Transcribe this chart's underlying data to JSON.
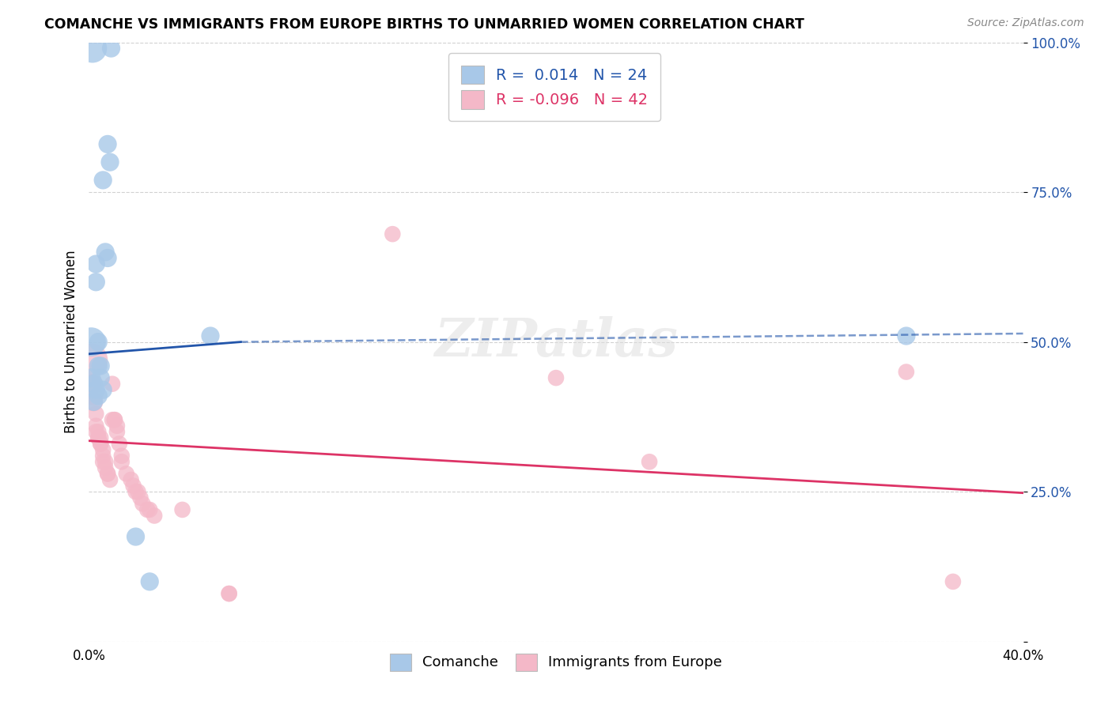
{
  "title": "COMANCHE VS IMMIGRANTS FROM EUROPE BIRTHS TO UNMARRIED WOMEN CORRELATION CHART",
  "source": "Source: ZipAtlas.com",
  "ylabel": "Births to Unmarried Women",
  "xlim": [
    0.0,
    0.4
  ],
  "ylim": [
    0.0,
    1.0
  ],
  "xticks": [
    0.0,
    0.4
  ],
  "xticklabels": [
    "0.0%",
    "40.0%"
  ],
  "yticks": [
    0.0,
    0.25,
    0.5,
    0.75,
    1.0
  ],
  "yticklabels": [
    "",
    "25.0%",
    "50.0%",
    "75.0%",
    "100.0%"
  ],
  "blue_color": "#a8c8e8",
  "pink_color": "#f4b8c8",
  "blue_line_color": "#2255aa",
  "pink_line_color": "#dd3366",
  "legend_label_blue": "Comanche",
  "legend_label_pink": "Immigrants from Europe",
  "R_blue": 0.014,
  "N_blue": 24,
  "R_pink": -0.096,
  "N_pink": 42,
  "blue_line_solid": [
    [
      0.0,
      0.48
    ],
    [
      0.065,
      0.5
    ]
  ],
  "blue_line_dashed": [
    [
      0.065,
      0.5
    ],
    [
      0.4,
      0.514
    ]
  ],
  "pink_line": [
    [
      0.0,
      0.335
    ],
    [
      0.4,
      0.248
    ]
  ],
  "blue_points": [
    [
      0.0015,
      0.99
    ],
    [
      0.0095,
      0.99
    ],
    [
      0.008,
      0.83
    ],
    [
      0.009,
      0.8
    ],
    [
      0.006,
      0.77
    ],
    [
      0.007,
      0.65
    ],
    [
      0.008,
      0.64
    ],
    [
      0.003,
      0.63
    ],
    [
      0.003,
      0.6
    ],
    [
      0.001,
      0.5
    ],
    [
      0.004,
      0.5
    ],
    [
      0.052,
      0.51
    ],
    [
      0.004,
      0.46
    ],
    [
      0.005,
      0.46
    ],
    [
      0.001,
      0.44
    ],
    [
      0.005,
      0.44
    ],
    [
      0.002,
      0.43
    ],
    [
      0.003,
      0.42
    ],
    [
      0.006,
      0.42
    ],
    [
      0.004,
      0.41
    ],
    [
      0.002,
      0.4
    ],
    [
      0.02,
      0.175
    ],
    [
      0.026,
      0.1
    ],
    [
      0.35,
      0.51
    ]
  ],
  "pink_points": [
    [
      0.001,
      0.47
    ],
    [
      0.001,
      0.43
    ],
    [
      0.002,
      0.43
    ],
    [
      0.002,
      0.41
    ],
    [
      0.002,
      0.4
    ],
    [
      0.003,
      0.38
    ],
    [
      0.003,
      0.36
    ],
    [
      0.003,
      0.35
    ],
    [
      0.004,
      0.35
    ],
    [
      0.004,
      0.34
    ],
    [
      0.004,
      0.34
    ],
    [
      0.005,
      0.34
    ],
    [
      0.005,
      0.33
    ],
    [
      0.005,
      0.33
    ],
    [
      0.006,
      0.32
    ],
    [
      0.006,
      0.31
    ],
    [
      0.006,
      0.3
    ],
    [
      0.007,
      0.3
    ],
    [
      0.007,
      0.29
    ],
    [
      0.008,
      0.28
    ],
    [
      0.008,
      0.28
    ],
    [
      0.009,
      0.27
    ],
    [
      0.01,
      0.43
    ],
    [
      0.01,
      0.37
    ],
    [
      0.011,
      0.37
    ],
    [
      0.011,
      0.37
    ],
    [
      0.012,
      0.36
    ],
    [
      0.012,
      0.35
    ],
    [
      0.013,
      0.33
    ],
    [
      0.014,
      0.31
    ],
    [
      0.014,
      0.3
    ],
    [
      0.016,
      0.28
    ],
    [
      0.018,
      0.27
    ],
    [
      0.019,
      0.26
    ],
    [
      0.02,
      0.25
    ],
    [
      0.021,
      0.25
    ],
    [
      0.022,
      0.24
    ],
    [
      0.023,
      0.23
    ],
    [
      0.025,
      0.22
    ],
    [
      0.026,
      0.22
    ],
    [
      0.028,
      0.21
    ],
    [
      0.04,
      0.22
    ],
    [
      0.06,
      0.08
    ],
    [
      0.06,
      0.08
    ],
    [
      0.13,
      0.68
    ],
    [
      0.2,
      0.44
    ],
    [
      0.24,
      0.3
    ],
    [
      0.35,
      0.45
    ],
    [
      0.37,
      0.1
    ]
  ],
  "background_color": "#ffffff",
  "grid_color": "#cccccc"
}
